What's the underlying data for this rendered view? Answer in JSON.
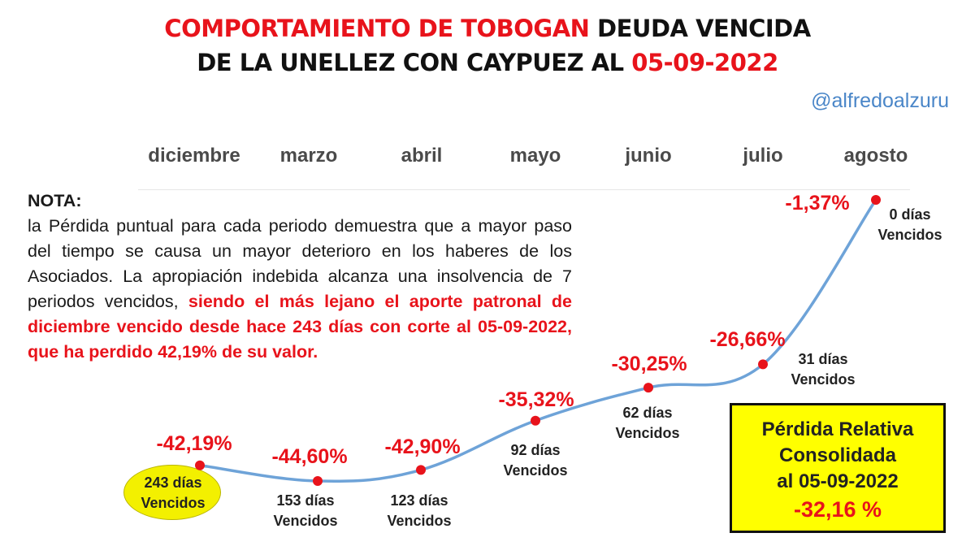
{
  "title": {
    "line1_red": "COMPORTAMIENTO DE TOBOGAN",
    "line1_black": "DEUDA VENCIDA",
    "line2_black": "DE LA UNELLEZ CON CAYPUEZ AL",
    "line2_red": "05-09-2022"
  },
  "handle": "@alfredoalzuru",
  "months": [
    "diciembre",
    "marzo",
    "abril",
    "mayo",
    "junio",
    "julio",
    "agosto"
  ],
  "note": {
    "title": "NOTA:",
    "body": "la Pérdida puntual para cada periodo demuestra que a mayor paso del tiempo se causa un mayor deterioro en los haberes de los Asociados. La apropiación indebida alcanza una insolvencia de 7 periodos vencidos,",
    "highlight": "siendo el más lejano el aporte patronal de diciembre vencido desde hace 243 días con corte al 05-09-2022, que ha perdido 42,19% de su valor."
  },
  "chart_data": {
    "type": "line",
    "x": [
      "diciembre",
      "marzo",
      "abril",
      "mayo",
      "junio",
      "julio",
      "agosto"
    ],
    "series": [
      {
        "values": [
          -42.19,
          -44.6,
          -42.9,
          -35.32,
          -30.25,
          -26.66,
          -1.37
        ]
      }
    ],
    "value_labels": [
      "-42,19%",
      "-44,60%",
      "-42,90%",
      "-35,32%",
      "-30,25%",
      "-26,66%",
      "-1,37%"
    ],
    "day_labels": [
      [
        "243 días",
        "Vencidos"
      ],
      [
        "153 días",
        "Vencidos"
      ],
      [
        "123 días",
        "Vencidos"
      ],
      [
        "92 días",
        "Vencidos"
      ],
      [
        "62 días",
        "Vencidos"
      ],
      [
        "31 días",
        "Vencidos"
      ],
      [
        "0 días",
        "Vencidos"
      ]
    ],
    "colors": {
      "line": "#6ea3d8",
      "marker": "#e8131b",
      "labels": "#e8131b"
    }
  },
  "summary_box": {
    "line1": "Pérdida Relativa",
    "line2": "Consolidada",
    "line3": "al 05-09-2022",
    "total": "-32,16 %"
  }
}
